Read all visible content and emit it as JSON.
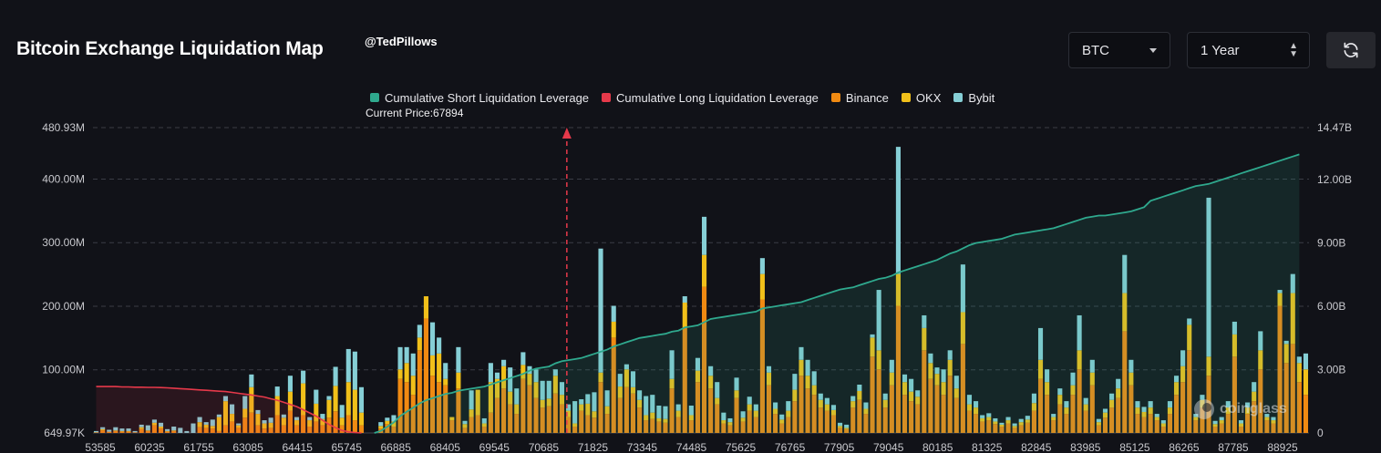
{
  "header": {
    "title": "Bitcoin Exchange Liquidation Map",
    "handle": "@TedPillows",
    "coin_select": "BTC",
    "range_select": "1 Year",
    "watermark": "coinglass"
  },
  "colors": {
    "background": "#111218",
    "short_line": "#2fa98e",
    "long_line": "#e6394a",
    "binance": "#f08a12",
    "okx": "#f1c01a",
    "bybit": "#86cfd6",
    "current_price_marker": "#e6394a"
  },
  "chart_data": {
    "type": "bar",
    "title": "Bitcoin Exchange Liquidation Map",
    "current_price_label": "Current Price:67894",
    "current_price": 67894,
    "legend": [
      "Cumulative Short Liquidation Leverage",
      "Cumulative Long Liquidation Leverage",
      "Binance",
      "OKX",
      "Bybit"
    ],
    "legend_position": "top",
    "grid": true,
    "left_axis": {
      "ylim": [
        649970,
        480930000
      ],
      "tick_labels": [
        "649.97K",
        "100.00M",
        "200.00M",
        "300.00M",
        "400.00M",
        "480.93M"
      ],
      "tick_values": [
        649970,
        100000000,
        200000000,
        300000000,
        400000000,
        480930000
      ]
    },
    "right_axis": {
      "ylim": [
        0,
        14470000000
      ],
      "tick_labels": [
        "0",
        "3.00B",
        "6.00B",
        "9.00B",
        "12.00B",
        "14.47B"
      ],
      "tick_values": [
        0,
        3000000000,
        6000000000,
        9000000000,
        12000000000,
        14470000000
      ]
    },
    "x_axis": {
      "xlim": [
        53585,
        90305
      ],
      "tick_labels": [
        "53585",
        "60235",
        "61755",
        "63085",
        "64415",
        "65745",
        "66885",
        "68405",
        "69545",
        "70685",
        "71825",
        "73345",
        "74485",
        "75625",
        "76765",
        "77905",
        "79045",
        "80185",
        "81325",
        "82845",
        "83985",
        "85125",
        "86265",
        "87785",
        "88925"
      ]
    },
    "series_units": "USD",
    "binance_m": [
      1,
      4,
      2,
      3,
      2,
      2,
      1,
      6,
      3,
      12,
      7,
      2,
      3,
      0,
      0,
      0,
      9,
      8,
      7,
      3,
      12,
      18,
      8,
      24,
      32,
      12,
      7,
      8,
      28,
      12,
      35,
      12,
      28,
      10,
      18,
      12,
      24,
      34,
      12,
      28,
      20,
      12,
      0,
      0,
      7,
      14,
      10,
      85,
      80,
      60,
      130,
      180,
      90,
      80,
      75,
      20,
      70,
      8,
      25,
      28,
      10,
      32,
      55,
      70,
      45,
      30,
      85,
      75,
      55,
      40,
      42,
      62,
      45,
      25,
      10,
      35,
      28,
      24,
      80,
      30,
      150,
      55,
      72,
      62,
      40,
      20,
      22,
      18,
      16,
      70,
      25,
      165,
      20,
      80,
      230,
      70,
      45,
      15,
      12,
      55,
      18,
      35,
      25,
      210,
      75,
      30,
      15,
      25,
      50,
      90,
      70,
      60,
      40,
      35,
      28,
      8,
      6,
      40,
      52,
      30,
      120,
      100,
      40,
      75,
      200,
      60,
      50,
      45,
      130,
      85,
      75,
      60,
      90,
      55,
      140,
      35,
      30,
      18,
      20,
      14,
      10,
      15,
      8,
      12,
      16,
      35,
      85,
      60,
      20,
      45,
      30,
      60,
      100,
      35,
      75,
      12,
      24,
      40,
      55,
      160,
      75,
      30,
      25,
      30,
      20,
      10,
      30,
      60,
      80,
      130,
      20,
      40,
      90,
      10,
      15,
      30,
      120,
      10,
      30,
      50,
      100,
      20,
      15,
      200,
      110,
      140,
      80,
      60
    ],
    "okx_m": [
      0,
      2,
      0,
      1,
      1,
      1,
      0,
      3,
      1,
      4,
      3,
      1,
      1,
      0,
      0,
      0,
      8,
      5,
      4,
      22,
      38,
      12,
      4,
      14,
      40,
      18,
      8,
      8,
      30,
      12,
      30,
      8,
      50,
      10,
      28,
      10,
      28,
      40,
      12,
      52,
      48,
      20,
      0,
      0,
      4,
      5,
      8,
      15,
      30,
      30,
      20,
      35,
      32,
      45,
      10,
      5,
      25,
      6,
      12,
      40,
      5,
      48,
      30,
      35,
      20,
      15,
      22,
      18,
      25,
      12,
      12,
      28,
      15,
      10,
      5,
      10,
      18,
      10,
      15,
      12,
      25,
      18,
      28,
      10,
      12,
      8,
      10,
      5,
      6,
      15,
      10,
      40,
      8,
      18,
      50,
      20,
      10,
      5,
      5,
      12,
      6,
      10,
      10,
      40,
      20,
      8,
      6,
      10,
      18,
      25,
      20,
      15,
      12,
      10,
      8,
      3,
      2,
      10,
      14,
      8,
      30,
      30,
      12,
      20,
      50,
      20,
      15,
      12,
      35,
      25,
      18,
      20,
      25,
      15,
      50,
      10,
      10,
      5,
      5,
      4,
      3,
      5,
      3,
      5,
      5,
      12,
      30,
      20,
      5,
      15,
      10,
      15,
      30,
      10,
      20,
      5,
      8,
      12,
      15,
      60,
      20,
      10,
      8,
      10,
      5,
      5,
      10,
      20,
      25,
      40,
      5,
      12,
      30,
      4,
      5,
      10,
      35,
      5,
      10,
      15,
      30,
      5,
      5,
      20,
      30,
      80,
      30,
      40
    ],
    "bybit_m": [
      2,
      3,
      3,
      5,
      4,
      4,
      2,
      4,
      8,
      5,
      6,
      3,
      6,
      8,
      3,
      15,
      8,
      4,
      10,
      4,
      8,
      15,
      3,
      20,
      20,
      6,
      5,
      8,
      15,
      5,
      25,
      5,
      20,
      5,
      22,
      8,
      6,
      30,
      20,
      52,
      60,
      40,
      0,
      0,
      6,
      5,
      10,
      35,
      25,
      35,
      20,
      0,
      52,
      25,
      25,
      0,
      40,
      5,
      30,
      0,
      8,
      30,
      10,
      10,
      38,
      25,
      20,
      12,
      20,
      30,
      28,
      10,
      20,
      10,
      35,
      8,
      15,
      30,
      195,
      25,
      25,
      20,
      8,
      25,
      15,
      30,
      28,
      20,
      20,
      45,
      10,
      10,
      15,
      20,
      60,
      15,
      25,
      12,
      6,
      20,
      10,
      12,
      10,
      25,
      10,
      10,
      8,
      15,
      25,
      20,
      25,
      22,
      10,
      10,
      8,
      5,
      5,
      8,
      10,
      10,
      5,
      95,
      10,
      20,
      200,
      12,
      20,
      10,
      20,
      15,
      10,
      20,
      15,
      20,
      75,
      15,
      10,
      5,
      6,
      5,
      3,
      5,
      4,
      5,
      6,
      15,
      50,
      20,
      5,
      10,
      10,
      20,
      55,
      10,
      20,
      5,
      6,
      10,
      15,
      60,
      20,
      10,
      8,
      10,
      5,
      5,
      10,
      10,
      25,
      10,
      5,
      8,
      250,
      5,
      5,
      10,
      20,
      5,
      8,
      15,
      30,
      5,
      5,
      5,
      5,
      30,
      10,
      25
    ],
    "cumulative_short_b": [
      0,
      0,
      0,
      0,
      0,
      0,
      0,
      0,
      0,
      0,
      0,
      0,
      0,
      0,
      0,
      0,
      0,
      0,
      0,
      0,
      0,
      0,
      0,
      0,
      0,
      0,
      0,
      0,
      0,
      0,
      0,
      0,
      0,
      0,
      0,
      0,
      0,
      0,
      0,
      0,
      0,
      0,
      0,
      0,
      0.1,
      0.3,
      0.5,
      0.8,
      1.0,
      1.2,
      1.4,
      1.55,
      1.65,
      1.75,
      1.85,
      1.9,
      2.0,
      2.05,
      2.1,
      2.15,
      2.2,
      2.3,
      2.4,
      2.5,
      2.6,
      2.7,
      2.8,
      2.95,
      3.05,
      3.1,
      3.15,
      3.3,
      3.4,
      3.45,
      3.5,
      3.55,
      3.65,
      3.75,
      3.85,
      3.95,
      4.1,
      4.2,
      4.3,
      4.4,
      4.5,
      4.55,
      4.6,
      4.65,
      4.7,
      4.8,
      4.85,
      5.0,
      5.05,
      5.1,
      5.25,
      5.4,
      5.45,
      5.5,
      5.55,
      5.6,
      5.65,
      5.7,
      5.75,
      5.9,
      5.95,
      6.0,
      6.05,
      6.1,
      6.15,
      6.2,
      6.3,
      6.4,
      6.5,
      6.6,
      6.7,
      6.8,
      6.85,
      6.9,
      7.0,
      7.1,
      7.2,
      7.3,
      7.35,
      7.45,
      7.6,
      7.7,
      7.8,
      7.9,
      8.0,
      8.1,
      8.2,
      8.35,
      8.5,
      8.6,
      8.75,
      8.9,
      9.0,
      9.05,
      9.1,
      9.15,
      9.2,
      9.3,
      9.4,
      9.45,
      9.5,
      9.55,
      9.6,
      9.65,
      9.7,
      9.8,
      9.9,
      10.0,
      10.1,
      10.2,
      10.25,
      10.3,
      10.3,
      10.35,
      10.4,
      10.45,
      10.5,
      10.6,
      10.7,
      11.0,
      11.1,
      11.2,
      11.3,
      11.4,
      11.5,
      11.6,
      11.7,
      11.75,
      11.8,
      11.9,
      12.0,
      12.1,
      12.2,
      12.3,
      12.4,
      12.5,
      12.6,
      12.7,
      12.8,
      12.9,
      13.0,
      13.1,
      13.2
    ],
    "cumulative_long_b": [
      2.2,
      2.2,
      2.2,
      2.2,
      2.18,
      2.18,
      2.17,
      2.17,
      2.16,
      2.16,
      2.15,
      2.14,
      2.12,
      2.1,
      2.08,
      2.06,
      2.04,
      2.02,
      2.0,
      1.98,
      1.96,
      1.92,
      1.88,
      1.84,
      1.8,
      1.75,
      1.7,
      1.62,
      1.55,
      1.45,
      1.35,
      1.25,
      1.1,
      0.95,
      0.8,
      0.6,
      0.4,
      0.25,
      0.12,
      0.05,
      0.02,
      0.0,
      0,
      0,
      0,
      0,
      0,
      0,
      0,
      0,
      0,
      0,
      0,
      0,
      0,
      0,
      0,
      0,
      0,
      0,
      0,
      0,
      0,
      0,
      0,
      0,
      0,
      0,
      0,
      0,
      0,
      0,
      0,
      0,
      0,
      0,
      0,
      0,
      0,
      0,
      0,
      0,
      0,
      0,
      0,
      0,
      0,
      0,
      0,
      0,
      0,
      0,
      0,
      0,
      0,
      0,
      0,
      0,
      0,
      0,
      0,
      0,
      0,
      0,
      0,
      0,
      0,
      0,
      0,
      0,
      0,
      0,
      0,
      0,
      0,
      0,
      0,
      0,
      0,
      0,
      0,
      0,
      0,
      0,
      0,
      0,
      0,
      0,
      0,
      0,
      0,
      0,
      0,
      0,
      0,
      0,
      0,
      0,
      0,
      0,
      0,
      0,
      0,
      0,
      0,
      0,
      0,
      0,
      0,
      0,
      0,
      0,
      0,
      0,
      0,
      0,
      0,
      0,
      0,
      0,
      0,
      0,
      0,
      0,
      0,
      0,
      0,
      0,
      0,
      0,
      0,
      0,
      0,
      0,
      0,
      0,
      0,
      0,
      0,
      0,
      0,
      0,
      0,
      0,
      0,
      0,
      0,
      0,
      0,
      0,
      0,
      0
    ]
  }
}
